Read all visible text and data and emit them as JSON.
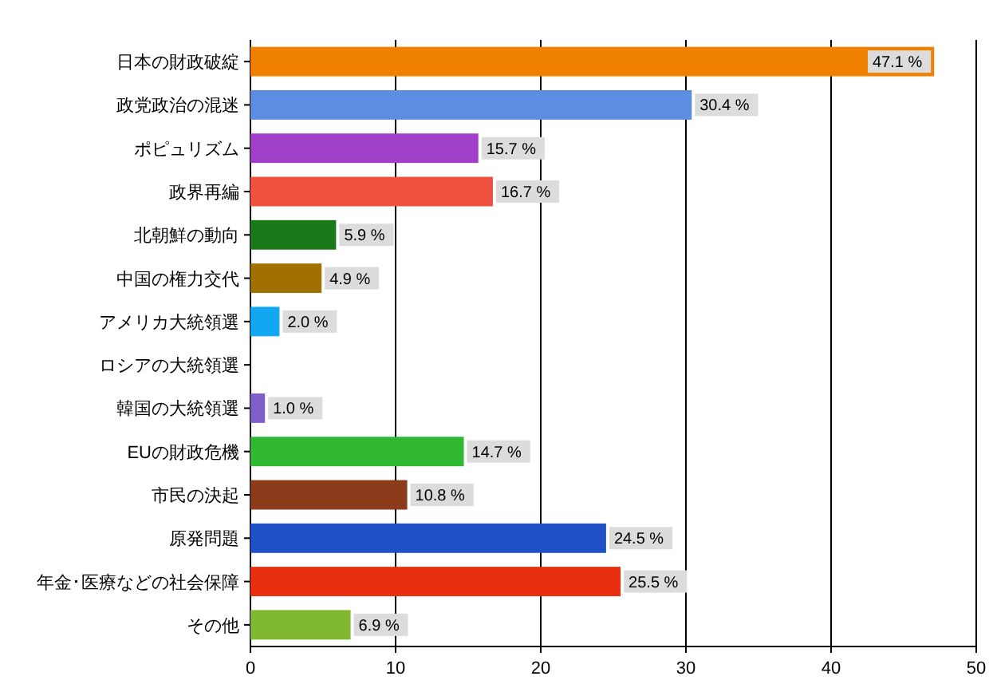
{
  "chart_data": {
    "type": "bar",
    "orientation": "horizontal",
    "categories": [
      "日本の財政破綻",
      "政党政治の混迷",
      "ポピュリズム",
      "政界再編",
      "北朝鮮の動向",
      "中国の権力交代",
      "アメリカ大統領選",
      "ロシアの大統領選",
      "韓国の大統領選",
      "EUの財政危機",
      "市民の決起",
      "原発問題",
      "年金･医療などの社会保障",
      "その他"
    ],
    "values": [
      47.1,
      30.4,
      15.7,
      16.7,
      5.9,
      4.9,
      2.0,
      null,
      1.0,
      14.7,
      10.8,
      24.5,
      25.5,
      6.9
    ],
    "value_labels": [
      "47.1 %",
      "30.4 %",
      "15.7 %",
      "16.7 %",
      "5.9 %",
      "4.9 %",
      "2.0 %",
      null,
      "1.0 %",
      "14.7 %",
      "10.8 %",
      "24.5 %",
      "25.5 %",
      "6.9 %"
    ],
    "colors": [
      "#f08000",
      "#5b8de0",
      "#a040c8",
      "#f05040",
      "#1a7a1a",
      "#a07000",
      "#10a8f0",
      null,
      "#8060c8",
      "#30b830",
      "#8b3a1a",
      "#2050c8",
      "#e83010",
      "#80b830"
    ],
    "xlim": [
      0,
      50
    ],
    "xticks": [
      0,
      10,
      20,
      30,
      40,
      50
    ],
    "grid": "x"
  }
}
